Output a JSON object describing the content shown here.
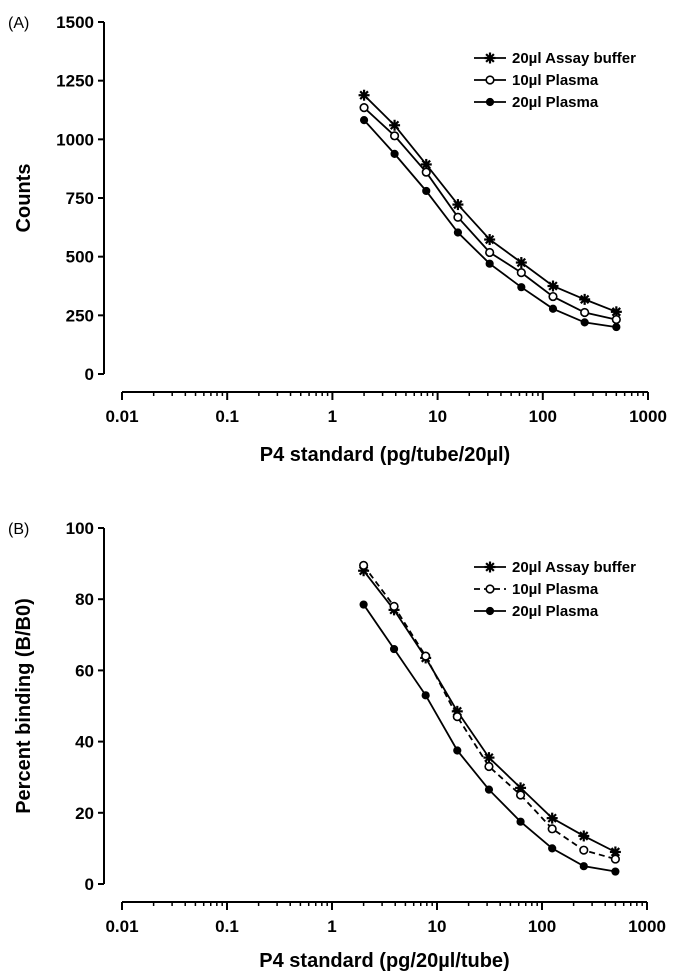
{
  "chart_data": [
    {
      "type": "line",
      "panel_label": "(A)",
      "xlabel": "P4 standard (pg/tube/20µl)",
      "ylabel": "Counts",
      "x_scale": "log",
      "xlim": [
        0.01,
        1000
      ],
      "ylim": [
        0,
        1500
      ],
      "x_ticks": [
        0.01,
        0.1,
        1,
        10,
        100,
        1000
      ],
      "x_tick_labels": [
        "0.01",
        "0.1",
        "1",
        "10",
        "100",
        "1000"
      ],
      "y_ticks": [
        0,
        250,
        500,
        750,
        1000,
        1250,
        1500
      ],
      "y_tick_labels": [
        "0",
        "250",
        "500",
        "750",
        "1000",
        "1250",
        "1500"
      ],
      "grid": false,
      "legend_position": "top-right",
      "x": [
        2,
        3.9,
        7.8,
        15.6,
        31.25,
        62.5,
        125,
        250,
        500
      ],
      "series": [
        {
          "name": "20µl Assay buffer",
          "marker": "asterisk",
          "dash": "solid",
          "values": [
            1188,
            1060,
            893,
            722,
            573,
            475,
            375,
            318,
            265
          ]
        },
        {
          "name": "10µl Plasma",
          "marker": "open-circle",
          "dash": "solid",
          "values": [
            1135,
            1015,
            860,
            668,
            518,
            432,
            330,
            262,
            232
          ]
        },
        {
          "name": "20µl Plasma",
          "marker": "filled-circle",
          "dash": "solid",
          "values": [
            1082,
            938,
            780,
            603,
            470,
            370,
            278,
            220,
            200
          ]
        }
      ]
    },
    {
      "type": "line",
      "panel_label": "(B)",
      "xlabel": "P4 standard (pg/20µl/tube)",
      "ylabel": "Percent binding (B/B0)",
      "x_scale": "log",
      "xlim": [
        0.01,
        1000
      ],
      "ylim": [
        0,
        100
      ],
      "x_ticks": [
        0.01,
        0.1,
        1,
        10,
        100,
        1000
      ],
      "x_tick_labels": [
        "0.01",
        "0.1",
        "1",
        "10",
        "100",
        "1000"
      ],
      "y_ticks": [
        0,
        20,
        40,
        60,
        80,
        100
      ],
      "y_tick_labels": [
        "0",
        "20",
        "40",
        "60",
        "80",
        "100"
      ],
      "grid": false,
      "legend_position": "top-right",
      "x": [
        2,
        3.9,
        7.8,
        15.6,
        31.25,
        62.5,
        125,
        250,
        500
      ],
      "series": [
        {
          "name": "20µl Assay buffer",
          "marker": "asterisk",
          "dash": "solid",
          "values": [
            88,
            77,
            63.5,
            48.5,
            35.5,
            27,
            18.5,
            13.5,
            9
          ]
        },
        {
          "name": "10µl Plasma",
          "marker": "open-circle",
          "dash": "dashed",
          "values": [
            89.5,
            78,
            64,
            47,
            33,
            25,
            15.5,
            9.5,
            7
          ]
        },
        {
          "name": "20µl Plasma",
          "marker": "filled-circle",
          "dash": "solid",
          "values": [
            78.5,
            66,
            53,
            37.5,
            26.5,
            17.5,
            10,
            5,
            3.5
          ]
        }
      ]
    }
  ]
}
